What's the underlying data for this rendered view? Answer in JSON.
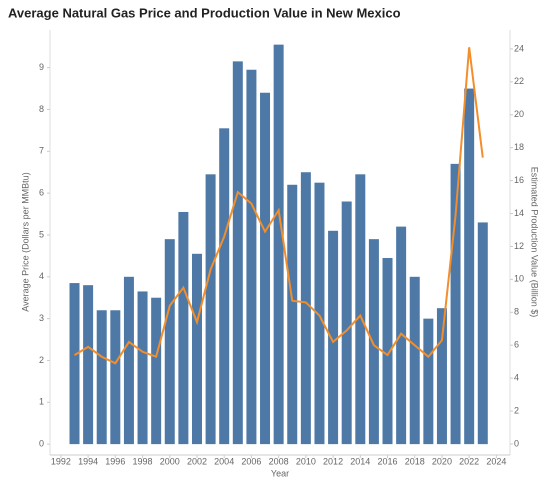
{
  "chart_data": {
    "type": "combo",
    "title": "Average Natural Gas Price and Production Value in New Mexico",
    "x_label": "Year",
    "y_label": "Average Price (Dollars per MMBtu)",
    "y2_label": "Estimated Production Value (Billion $)",
    "x": [
      1993,
      1994,
      1995,
      1996,
      1997,
      1998,
      1999,
      2000,
      2001,
      2002,
      2003,
      2004,
      2005,
      2006,
      2007,
      2008,
      2009,
      2010,
      2011,
      2012,
      2013,
      2014,
      2015,
      2016,
      2017,
      2018,
      2019,
      2020,
      2021,
      2022,
      2023
    ],
    "series": [
      {
        "name": "Average Price",
        "type": "bar",
        "color": "#4e79a7",
        "values": [
          3.85,
          3.8,
          3.2,
          3.2,
          4.0,
          3.65,
          3.5,
          4.9,
          5.55,
          4.55,
          6.45,
          7.55,
          9.15,
          8.95,
          8.4,
          9.55,
          6.2,
          6.5,
          6.25,
          5.1,
          5.8,
          6.45,
          4.9,
          4.45,
          5.2,
          4.0,
          3.0,
          3.25,
          6.7,
          8.5,
          5.3
        ]
      },
      {
        "name": "Production Value",
        "type": "line",
        "axis": "y2",
        "color": "#f28e2b",
        "values": [
          5.4,
          5.9,
          5.3,
          4.9,
          6.2,
          5.6,
          5.3,
          8.4,
          9.5,
          7.4,
          10.6,
          12.6,
          15.3,
          14.6,
          12.9,
          14.2,
          8.7,
          8.6,
          7.8,
          6.2,
          6.9,
          7.8,
          6.0,
          5.4,
          6.7,
          6.0,
          5.3,
          6.3,
          13.9,
          24.1,
          17.4
        ]
      }
    ],
    "xlim": [
      1991.2,
      2025
    ],
    "xticks": [
      1992,
      1994,
      1996,
      1998,
      2000,
      2002,
      2004,
      2006,
      2008,
      2010,
      2012,
      2014,
      2016,
      2018,
      2020,
      2022,
      2024
    ],
    "ylim": [
      -0.26,
      9.9
    ],
    "yticks": [
      0,
      1,
      2,
      3,
      4,
      5,
      6,
      7,
      8,
      9
    ],
    "y2lim": [
      -0.67,
      25.15
    ],
    "y2ticks": [
      0,
      2,
      4,
      6,
      8,
      10,
      12,
      14,
      16,
      18,
      20,
      22,
      24
    ],
    "grid": false
  }
}
